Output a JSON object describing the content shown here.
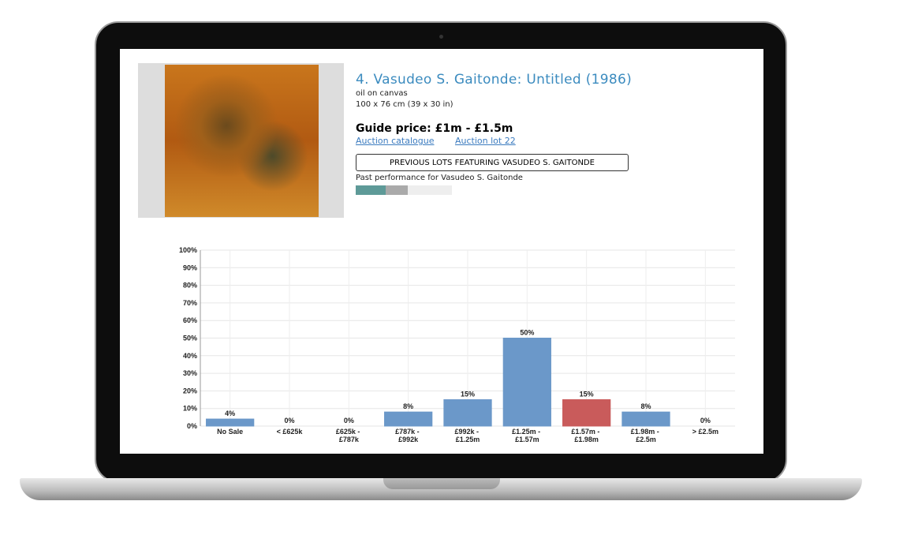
{
  "lot": {
    "title": "4. Vasudeo S. Gaitonde: Untitled (1986)",
    "medium": "oil on canvas",
    "size": "100 x 76 cm (39 x 30 in)",
    "guide_price": "Guide price: £1m - £1.5m",
    "links": [
      "Auction catalogue",
      "Auction lot 22"
    ],
    "button": "PREVIOUS LOTS FEATURING VASUDEO S. GAITONDE",
    "performance_label": "Past performance for Vasudeo S. Gaitonde"
  },
  "chart_data": {
    "type": "bar",
    "categories": [
      "No Sale",
      "< £625k",
      "£625k - £787k",
      "£787k - £992k",
      "£992k - £1.25m",
      "£1.25m - £1.57m",
      "£1.57m - £1.98m",
      "£1.98m - £2.5m",
      "> £2.5m"
    ],
    "values": [
      4,
      0,
      0,
      8,
      15,
      50,
      15,
      8,
      0
    ],
    "value_labels": [
      "4%",
      "0%",
      "0%",
      "8%",
      "15%",
      "50%",
      "15%",
      "8%",
      "0%"
    ],
    "colors": [
      "#6b98c9",
      "#6b98c9",
      "#6b98c9",
      "#6b98c9",
      "#6b98c9",
      "#6b98c9",
      "#c95b5b",
      "#6b98c9",
      "#6b98c9"
    ],
    "ylim": [
      0,
      100
    ],
    "yticks": [
      {
        "value": 0,
        "label": "0%"
      },
      {
        "value": 10,
        "label": "10%"
      },
      {
        "value": 20,
        "label": "20%"
      },
      {
        "value": 30,
        "label": "30%"
      },
      {
        "value": 40,
        "label": "40%"
      },
      {
        "value": 50,
        "label": "50%"
      },
      {
        "value": 60,
        "label": "60%"
      },
      {
        "value": 70,
        "label": "70%"
      },
      {
        "value": 80,
        "label": "80%"
      },
      {
        "value": 90,
        "label": "90%"
      },
      {
        "value": 100,
        "label": "100%"
      }
    ],
    "grid": true
  }
}
